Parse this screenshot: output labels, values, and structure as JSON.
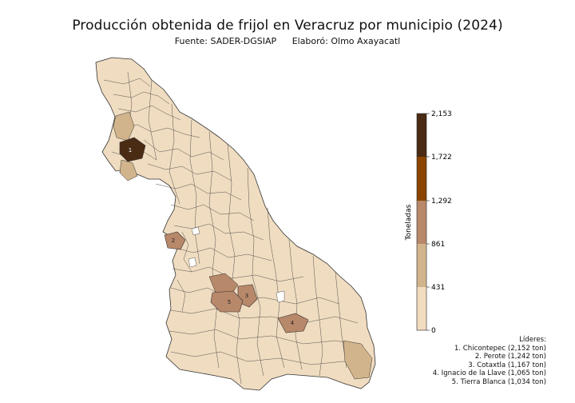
{
  "header": {
    "title": "Producción obtenida de frijol en Veracruz por municipio (2024)",
    "source": "Fuente: SADER-DGSIAP",
    "author": "Elaboró: Olmo Axayacatl"
  },
  "colorbar": {
    "label": "Toneladas",
    "ticks": [
      "2,153",
      "1,722",
      "1,292",
      "861",
      "431",
      "0"
    ],
    "tick_values": [
      2153,
      1722,
      1292,
      861,
      431,
      0
    ],
    "colors": [
      "#f2dcc0",
      "#d2b48c",
      "#b8886a",
      "#8b4500",
      "#4a2b14"
    ]
  },
  "leaders": {
    "title": "Líderes:",
    "items": [
      {
        "rank": "1",
        "text": "1. Chicontepec (2,152 ton)",
        "value": 2152
      },
      {
        "rank": "2",
        "text": "2. Perote (1,242 ton)",
        "value": 1242
      },
      {
        "rank": "3",
        "text": "3. Cotaxtla (1,167 ton)",
        "value": 1167
      },
      {
        "rank": "4",
        "text": "4. Ignacio de la Llave (1,065 ton)",
        "value": 1065
      },
      {
        "rank": "5",
        "text": "5. Tierra Blanca (1,034 ton)",
        "value": 1034
      }
    ]
  },
  "map": {
    "base_color": "#f0dcc0",
    "border_color": "#333333"
  }
}
